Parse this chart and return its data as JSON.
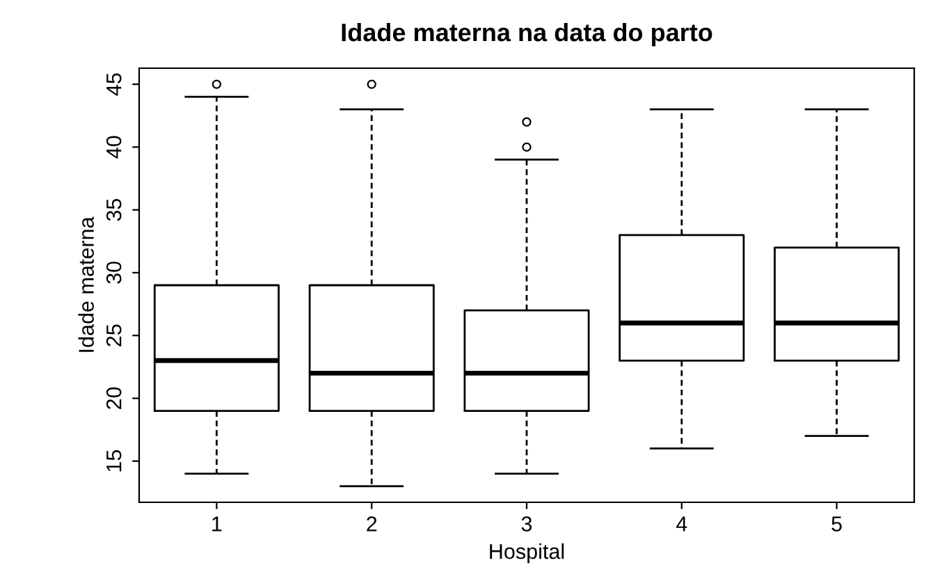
{
  "chart_data": {
    "type": "box",
    "title": "Idade materna na data do parto",
    "xlabel": "Hospital",
    "ylabel": "Idade materna",
    "categories": [
      "1",
      "2",
      "3",
      "4",
      "5"
    ],
    "ylim": [
      11.72,
      46.28
    ],
    "yticks": [
      15,
      20,
      25,
      30,
      35,
      40,
      45
    ],
    "grid": false,
    "boxes": [
      {
        "low": 14,
        "q1": 19,
        "median": 23,
        "q3": 29,
        "high": 44,
        "outliers": [
          45
        ]
      },
      {
        "low": 13,
        "q1": 19,
        "median": 22,
        "q3": 29,
        "high": 43,
        "outliers": [
          45
        ]
      },
      {
        "low": 14,
        "q1": 19,
        "median": 22,
        "q3": 27,
        "high": 39,
        "outliers": [
          40,
          42
        ]
      },
      {
        "low": 16,
        "q1": 23,
        "median": 26,
        "q3": 33,
        "high": 43
      },
      {
        "low": 17,
        "q1": 23,
        "median": 26,
        "q3": 32,
        "high": 43
      }
    ]
  }
}
